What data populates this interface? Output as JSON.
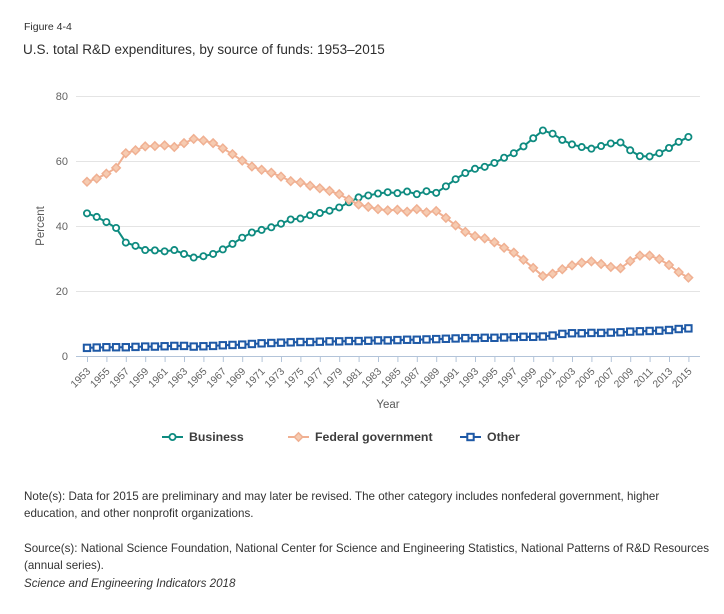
{
  "figure": {
    "label": "Figure 4-4",
    "title": "U.S. total R&D expenditures, by source of funds: 1953–2015"
  },
  "chart_data": {
    "type": "line",
    "title": "U.S. total R&D expenditures, by source of funds: 1953–2015",
    "xlabel": "Year",
    "ylabel": "Percent",
    "ylim": [
      0,
      80
    ],
    "yticks": [
      0,
      20,
      40,
      60,
      80
    ],
    "xtick_labels": [
      "1953",
      "1955",
      "1957",
      "1959",
      "1961",
      "1963",
      "1965",
      "1967",
      "1969",
      "1971",
      "1973",
      "1975",
      "1977",
      "1979",
      "1981",
      "1983",
      "1985",
      "1987",
      "1989",
      "1991",
      "1993",
      "1995",
      "1997",
      "1999",
      "2001",
      "2003",
      "2005",
      "2007",
      "2009",
      "2011",
      "2013",
      "2015"
    ],
    "grid": true,
    "legend_position": "bottom",
    "x": [
      1953,
      1954,
      1955,
      1956,
      1957,
      1958,
      1959,
      1960,
      1961,
      1962,
      1963,
      1964,
      1965,
      1966,
      1967,
      1968,
      1969,
      1970,
      1971,
      1972,
      1973,
      1974,
      1975,
      1976,
      1977,
      1978,
      1979,
      1980,
      1981,
      1982,
      1983,
      1984,
      1985,
      1986,
      1987,
      1988,
      1989,
      1990,
      1991,
      1992,
      1993,
      1994,
      1995,
      1996,
      1997,
      1998,
      1999,
      2000,
      2001,
      2002,
      2003,
      2004,
      2005,
      2006,
      2007,
      2008,
      2009,
      2010,
      2011,
      2012,
      2013,
      2014,
      2015
    ],
    "series": [
      {
        "name": "Business",
        "color": "#0e8b80",
        "marker": "circle",
        "values": [
          43.9,
          42.8,
          41.2,
          39.4,
          34.9,
          33.9,
          32.6,
          32.5,
          32.2,
          32.6,
          31.4,
          30.3,
          30.7,
          31.4,
          32.8,
          34.5,
          36.4,
          38.0,
          38.8,
          39.6,
          40.7,
          42.0,
          42.3,
          43.3,
          44.0,
          44.7,
          45.7,
          47.3,
          48.8,
          49.4,
          50.0,
          50.4,
          50.1,
          50.6,
          49.8,
          50.7,
          50.2,
          52.2,
          54.4,
          56.3,
          57.6,
          58.2,
          59.4,
          61.0,
          62.4,
          64.5,
          67.0,
          69.4,
          68.4,
          66.5,
          65.1,
          64.3,
          63.8,
          64.6,
          65.4,
          65.7,
          63.3,
          61.5,
          61.4,
          62.4,
          64.0,
          65.9,
          67.4
        ]
      },
      {
        "name": "Federal government",
        "color": "#f0b092",
        "marker": "diamond",
        "values": [
          53.6,
          54.6,
          56.1,
          57.9,
          62.4,
          63.3,
          64.5,
          64.6,
          64.8,
          64.3,
          65.5,
          66.8,
          66.3,
          65.5,
          63.9,
          62.1,
          60.1,
          58.3,
          57.3,
          56.4,
          55.2,
          53.8,
          53.4,
          52.4,
          51.6,
          50.8,
          49.8,
          48.1,
          46.6,
          45.9,
          45.2,
          44.8,
          45.0,
          44.4,
          45.2,
          44.2,
          44.6,
          42.5,
          40.2,
          38.2,
          36.9,
          36.2,
          35.0,
          33.3,
          31.8,
          29.6,
          27.1,
          24.6,
          25.3,
          26.7,
          27.9,
          28.7,
          29.1,
          28.3,
          27.4,
          27.0,
          29.2,
          30.9,
          30.9,
          29.8,
          28.0,
          25.8,
          24.1
        ]
      },
      {
        "name": "Other",
        "color": "#1e59a6",
        "marker": "square",
        "values": [
          2.5,
          2.6,
          2.7,
          2.7,
          2.7,
          2.8,
          2.9,
          2.9,
          3.0,
          3.1,
          3.1,
          2.9,
          3.0,
          3.1,
          3.3,
          3.4,
          3.5,
          3.7,
          3.9,
          4.0,
          4.1,
          4.2,
          4.3,
          4.3,
          4.4,
          4.5,
          4.5,
          4.6,
          4.6,
          4.7,
          4.8,
          4.8,
          4.9,
          5.0,
          5.0,
          5.1,
          5.2,
          5.3,
          5.4,
          5.5,
          5.5,
          5.6,
          5.6,
          5.7,
          5.8,
          5.9,
          5.9,
          6.0,
          6.3,
          6.8,
          7.0,
          7.0,
          7.1,
          7.1,
          7.2,
          7.3,
          7.5,
          7.6,
          7.7,
          7.8,
          8.0,
          8.3,
          8.5
        ]
      }
    ],
    "colors": {
      "grid": "#e4e4e4",
      "axis": "#b3c4d9",
      "tick_label": "#636363",
      "axis_title": "#5a5a5a",
      "legend_text": "#3d3d3d"
    }
  },
  "notes": {
    "note": "Note(s): Data for 2015 are preliminary and may later be revised. The other category includes nonfederal government, higher education, and other nonprofit organizations.",
    "source": "Source(s): National Science Foundation, National Center for Science and Engineering Statistics, National Patterns of R&D Resources (annual series).",
    "footer": "Science and Engineering Indicators 2018"
  }
}
